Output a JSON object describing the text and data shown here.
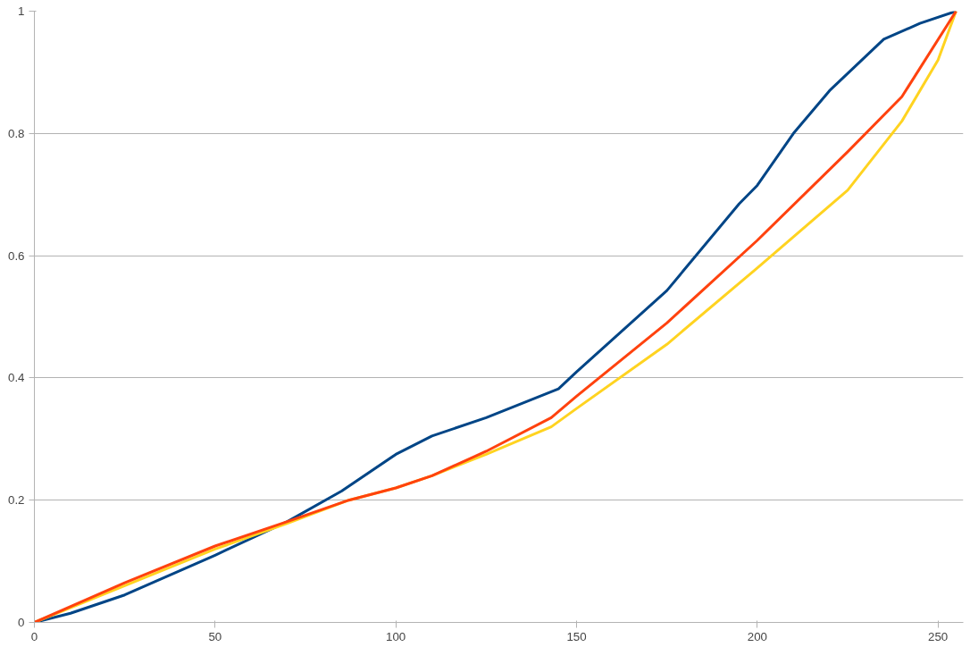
{
  "chart_data": {
    "type": "line",
    "xlim": [
      0,
      257
    ],
    "ylim": [
      0,
      1
    ],
    "xticks": [
      0,
      50,
      100,
      150,
      200,
      250
    ],
    "yticks": [
      0,
      0.2,
      0.4,
      0.6,
      0.8,
      1
    ],
    "grid": "y",
    "marker": "none",
    "line_style": "solid",
    "series": [
      {
        "color": "#004586",
        "x": [
          0,
          10,
          25,
          50,
          70,
          85,
          100,
          110,
          125,
          145,
          150,
          175,
          195,
          200,
          210,
          220,
          235,
          245,
          255
        ],
        "values": [
          0,
          0.015,
          0.045,
          0.11,
          0.165,
          0.215,
          0.275,
          0.305,
          0.335,
          0.382,
          0.41,
          0.543,
          0.685,
          0.715,
          0.8,
          0.87,
          0.954,
          0.98,
          1
        ]
      },
      {
        "color": "#ffd320",
        "x": [
          0,
          25,
          50,
          70,
          87,
          100,
          110,
          125,
          143,
          150,
          175,
          200,
          225,
          240,
          250,
          255
        ],
        "values": [
          0,
          0.06,
          0.12,
          0.162,
          0.2,
          0.22,
          0.24,
          0.275,
          0.32,
          0.35,
          0.455,
          0.58,
          0.707,
          0.82,
          0.92,
          1
        ]
      },
      {
        "color": "#ff420e",
        "x": [
          0,
          25,
          50,
          70,
          87,
          100,
          110,
          125,
          143,
          150,
          175,
          200,
          225,
          240,
          255
        ],
        "values": [
          0,
          0.065,
          0.125,
          0.165,
          0.2,
          0.22,
          0.24,
          0.28,
          0.335,
          0.37,
          0.49,
          0.625,
          0.77,
          0.86,
          1
        ]
      }
    ]
  }
}
